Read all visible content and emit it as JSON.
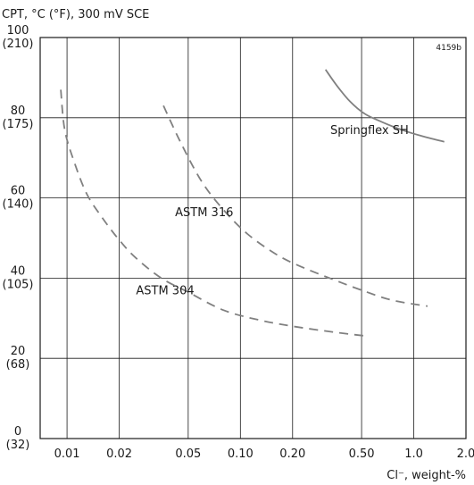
{
  "chart_data": {
    "type": "line",
    "title": "",
    "ylabel": "CPT, °C (°F), 300 mV SCE",
    "xlabel": "Cl⁻, weight-%",
    "figure_code": "4159b",
    "x_scale": "log",
    "xlim": [
      0.007,
      2.0
    ],
    "ylim": [
      0,
      100
    ],
    "grid": true,
    "x_ticks": [
      {
        "value": 0.01,
        "label": "0.01"
      },
      {
        "value": 0.02,
        "label": "0.02"
      },
      {
        "value": 0.05,
        "label": "0.05"
      },
      {
        "value": 0.1,
        "label": "0.10"
      },
      {
        "value": 0.2,
        "label": "0.20"
      },
      {
        "value": 0.5,
        "label": "0.50"
      },
      {
        "value": 1.0,
        "label": "1.0"
      },
      {
        "value": 2.0,
        "label": "2.0"
      }
    ],
    "y_ticks": [
      {
        "value": 0,
        "label": "0",
        "sublabel": "(32)"
      },
      {
        "value": 20,
        "label": "20",
        "sublabel": "(68)"
      },
      {
        "value": 40,
        "label": "40",
        "sublabel": "(105)"
      },
      {
        "value": 60,
        "label": "60",
        "sublabel": "(140)"
      },
      {
        "value": 80,
        "label": "80",
        "sublabel": "(175)"
      },
      {
        "value": 100,
        "label": "100",
        "sublabel": "(210)"
      }
    ],
    "series": [
      {
        "name": "Springflex SH",
        "style": "solid",
        "color": "#808080",
        "label_at": {
          "x": 0.33,
          "y": 76
        },
        "points": [
          [
            0.31,
            92
          ],
          [
            0.36,
            88
          ],
          [
            0.43,
            84
          ],
          [
            0.52,
            81
          ],
          [
            0.65,
            79
          ],
          [
            0.85,
            77
          ],
          [
            1.1,
            75.5
          ],
          [
            1.5,
            74
          ]
        ]
      },
      {
        "name": "ASTM 316",
        "style": "dashed",
        "color": "#808080",
        "label_at": {
          "x": 0.042,
          "y": 55.5
        },
        "points": [
          [
            0.036,
            83
          ],
          [
            0.045,
            74
          ],
          [
            0.06,
            64
          ],
          [
            0.08,
            57
          ],
          [
            0.11,
            51
          ],
          [
            0.16,
            46
          ],
          [
            0.22,
            43
          ],
          [
            0.35,
            39.5
          ],
          [
            0.5,
            37
          ],
          [
            0.75,
            34.5
          ],
          [
            1.2,
            33
          ]
        ]
      },
      {
        "name": "ASTM 304",
        "style": "dashed",
        "color": "#808080",
        "label_at": {
          "x": 0.025,
          "y": 36
        },
        "points": [
          [
            0.0092,
            87
          ],
          [
            0.0097,
            77
          ],
          [
            0.011,
            69
          ],
          [
            0.013,
            61
          ],
          [
            0.016,
            55
          ],
          [
            0.02,
            49.5
          ],
          [
            0.025,
            45
          ],
          [
            0.035,
            40
          ],
          [
            0.05,
            36.5
          ],
          [
            0.08,
            32
          ],
          [
            0.13,
            29.5
          ],
          [
            0.2,
            28
          ],
          [
            0.35,
            26.5
          ],
          [
            0.55,
            25.5
          ]
        ]
      }
    ]
  }
}
